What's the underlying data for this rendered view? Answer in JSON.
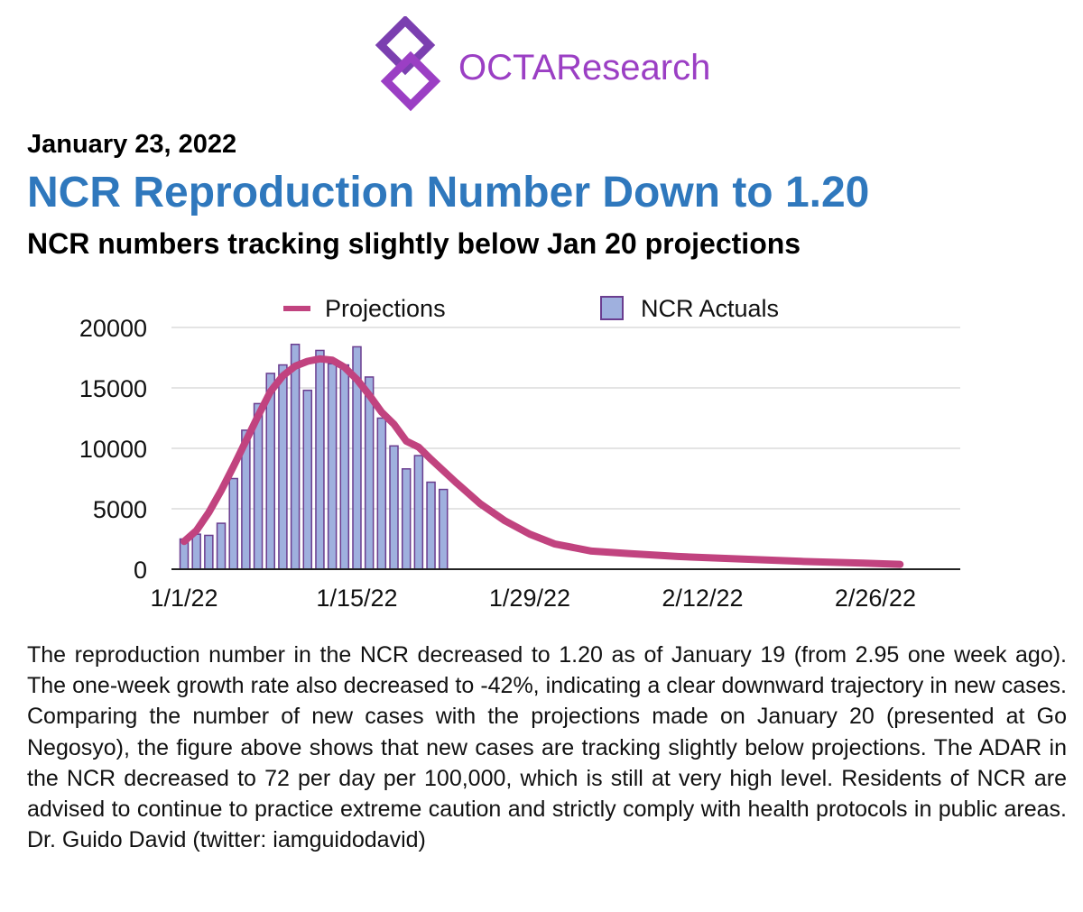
{
  "brand": {
    "name": "OCTAResearch",
    "color": "#9b3fc4"
  },
  "header": {
    "date": "January 23, 2022",
    "headline": "NCR Reproduction Number Down to 1.20",
    "subtitle": "NCR numbers tracking slightly below Jan 20 projections",
    "headline_color": "#2f78bd"
  },
  "chart_data": {
    "type": "bar",
    "title": "",
    "xlabel": "",
    "ylabel": "",
    "ylim": [
      0,
      20000
    ],
    "yticks": [
      "0",
      "5000",
      "10000",
      "15000",
      "20000"
    ],
    "xlim": [
      0,
      62
    ],
    "xticks": [
      {
        "x": 0,
        "label": "1/1/22"
      },
      {
        "x": 14,
        "label": "1/15/22"
      },
      {
        "x": 28,
        "label": "1/29/22"
      },
      {
        "x": 42,
        "label": "2/12/22"
      },
      {
        "x": 56,
        "label": "2/26/22"
      }
    ],
    "grid": true,
    "legend_placement": "top",
    "series": [
      {
        "name": "NCR Actuals",
        "kind": "bar",
        "color": "#9fb0de",
        "edge_color": "#6a3d8f",
        "x": [
          0,
          1,
          2,
          3,
          4,
          5,
          6,
          7,
          8,
          9,
          10,
          11,
          12,
          13,
          14,
          15,
          16,
          17,
          18,
          19,
          20,
          21,
          22
        ],
        "values": [
          2500,
          2900,
          2800,
          3800,
          7500,
          11500,
          13700,
          16200,
          16900,
          18600,
          14800,
          18100,
          17000,
          16900,
          18400,
          15900,
          12500,
          10200,
          8300,
          9400,
          7200,
          6600,
          null
        ]
      },
      {
        "name": "Projections",
        "kind": "line",
        "color": "#c1437f",
        "x": [
          0,
          1,
          2,
          3,
          4,
          5,
          6,
          7,
          8,
          9,
          10,
          11,
          12,
          13,
          14,
          15,
          16,
          17,
          18,
          19,
          20,
          22,
          24,
          26,
          28,
          30,
          33,
          36,
          40,
          45,
          50,
          55,
          58
        ],
        "values": [
          2300,
          3200,
          4700,
          6500,
          8500,
          10600,
          12700,
          14700,
          16000,
          16800,
          17200,
          17400,
          17300,
          16700,
          15700,
          14400,
          13000,
          12000,
          10600,
          10100,
          9100,
          7200,
          5400,
          4000,
          2900,
          2100,
          1500,
          1300,
          1050,
          850,
          650,
          500,
          400
        ]
      }
    ]
  },
  "body": {
    "paragraph": "The reproduction number in the NCR decreased to 1.20 as of January 19 (from 2.95 one week ago). The one-week growth rate also decreased to -42%, indicating a clear downward trajectory in new cases. Comparing the number of new cases with the projections made on January 20 (presented at Go Negosyo), the figure above shows that new cases are tracking slightly below projections. The ADAR in the NCR decreased to 72 per day per 100,000, which is still at very high level. Residents of NCR are advised to continue to practice extreme caution and strictly comply with health protocols in public areas. Dr. Guido David (twitter: iamguidodavid)"
  }
}
